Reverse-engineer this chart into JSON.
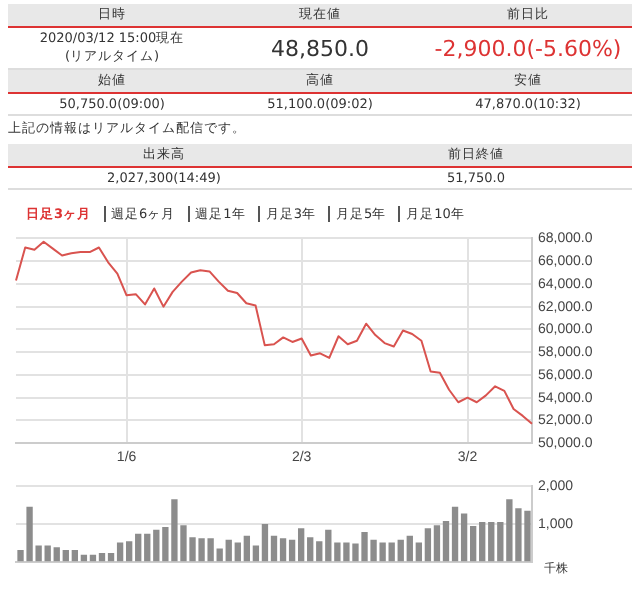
{
  "chart_data": [
    {
      "type": "other",
      "annotations": [
        "日時",
        "現在値",
        "前日比",
        "2020/03/12 15:00現在\n(リアルタイム)",
        "48,850.0",
        "-2,900.0(-5.60%)",
        "始値",
        "高値",
        "安値",
        "50,750.0(09:00)",
        "51,100.0(09:02)",
        "47,870.0(10:32)",
        "上記の情報はリアルタイム配信です。",
        "出来高",
        "前日終値",
        "2,027,300(14:49)",
        "51,750.0"
      ]
    },
    {
      "type": "line",
      "annotations": [
        "日足3ヶ月",
        "週足6ヶ月",
        "週足1年",
        "月足3年",
        "月足5年",
        "月足10年"
      ],
      "categories": [
        null,
        null,
        null,
        null,
        null,
        null,
        null,
        null,
        null,
        null,
        null,
        null,
        "1/6",
        null,
        null,
        null,
        null,
        null,
        null,
        null,
        null,
        null,
        null,
        null,
        null,
        null,
        null,
        null,
        null,
        null,
        null,
        "2/3",
        null,
        null,
        null,
        null,
        null,
        null,
        null,
        null,
        null,
        null,
        null,
        null,
        null,
        null,
        null,
        null,
        null,
        "3/2",
        null,
        null,
        null,
        null,
        null,
        null,
        null
      ],
      "series": [
        {
          "color": "#d9534f",
          "values": [
            64300,
            67200,
            67000,
            67700,
            67100,
            66500,
            66700,
            66800,
            66800,
            67200,
            65900,
            64900,
            63000,
            63100,
            62200,
            63600,
            62000,
            63300,
            64200,
            65000,
            65200,
            65100,
            64200,
            63400,
            63200,
            62300,
            62100,
            58600,
            58700,
            59300,
            58900,
            59200,
            57700,
            57900,
            57500,
            59400,
            58700,
            59000,
            60500,
            59500,
            58800,
            58500,
            59900,
            59600,
            59000,
            56300,
            56200,
            54700,
            53600,
            54000,
            53600,
            54200,
            55000,
            54600,
            53000,
            52400,
            51700
          ]
        }
      ],
      "ylim": [
        50000,
        68000
      ],
      "yticks": [
        {
          "value": 50000,
          "label": "50,000.0"
        },
        {
          "value": 52000,
          "label": "52,000.0"
        },
        {
          "value": 54000,
          "label": "54,000.0"
        },
        {
          "value": 56000,
          "label": "56,000.0"
        },
        {
          "value": 58000,
          "label": "58,000.0"
        },
        {
          "value": 60000,
          "label": "60,000.0"
        },
        {
          "value": 62000,
          "label": "62,000.0"
        },
        {
          "value": 64000,
          "label": "64,000.0"
        },
        {
          "value": 66000,
          "label": "66,000.0"
        },
        {
          "value": 68000,
          "label": "68,000.0"
        }
      ],
      "grid": true,
      "marker": "none",
      "line_style": "solid"
    },
    {
      "type": "bar",
      "ylabel": "千株",
      "categories": [
        null,
        null,
        null,
        null,
        null,
        null,
        null,
        null,
        null,
        null,
        null,
        null,
        null,
        null,
        null,
        null,
        null,
        null,
        null,
        null,
        null,
        null,
        null,
        null,
        null,
        null,
        null,
        null,
        null,
        null,
        null,
        null,
        null,
        null,
        null,
        null,
        null,
        null,
        null,
        null,
        null,
        null,
        null,
        null,
        null,
        null,
        null,
        null,
        null,
        null,
        null,
        null,
        null,
        null,
        null,
        null,
        null
      ],
      "series": [
        {
          "color": "#8c8c8c",
          "values": [
            310,
            1460,
            430,
            430,
            380,
            310,
            310,
            180,
            180,
            230,
            230,
            510,
            540,
            740,
            740,
            850,
            920,
            1660,
            970,
            650,
            620,
            620,
            350,
            580,
            510,
            690,
            430,
            1000,
            690,
            620,
            580,
            890,
            650,
            540,
            850,
            510,
            510,
            480,
            790,
            580,
            510,
            510,
            580,
            690,
            510,
            890,
            970,
            1080,
            1460,
            1280,
            950,
            1050,
            1050,
            1050,
            1660,
            1420,
            1350
          ]
        }
      ],
      "ylim": [
        0,
        2000
      ],
      "yticks": [
        {
          "value": 1000,
          "label": "1,000"
        },
        {
          "value": 2000,
          "label": "2,000"
        }
      ],
      "grid": true,
      "tick_labels": "y"
    }
  ]
}
